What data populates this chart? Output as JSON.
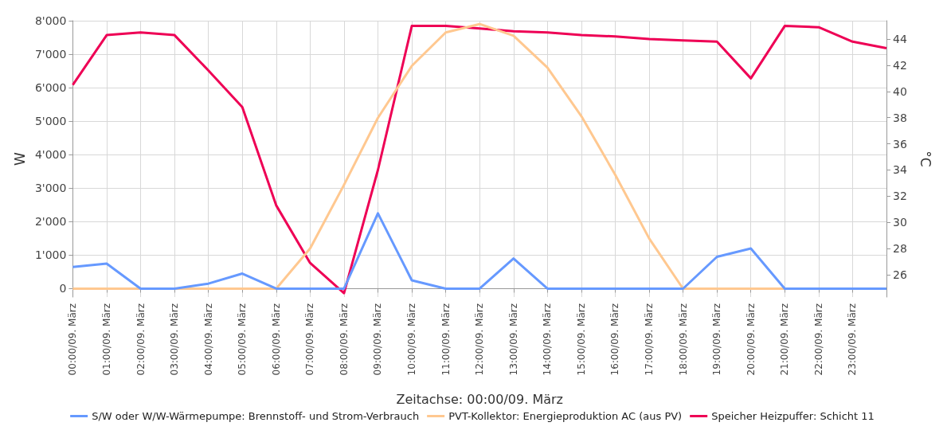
{
  "chart_data": {
    "type": "line",
    "xlabel": "Zeitachse: 00:00/09. März",
    "ylabel": "W",
    "y2label": "°C",
    "categories": [
      "00:00/09. März",
      "01:00/09. März",
      "02:00/09. März",
      "03:00/09. März",
      "04:00/09. März",
      "05:00/09. März",
      "06:00/09. März",
      "07:00/09. März",
      "08:00/09. März",
      "09:00/09. März",
      "10:00/09. März",
      "11:00/09. März",
      "12:00/09. März",
      "13:00/09. März",
      "14:00/09. März",
      "15:00/09. März",
      "16:00/09. März",
      "17:00/09. März",
      "18:00/09. März",
      "19:00/09. März",
      "20:00/09. März",
      "21:00/09. März",
      "22:00/09. März",
      "23:00/09. März",
      null
    ],
    "series": [
      {
        "name": "S/W oder W/W-Wärmepumpe: Brennstoff- und Strom-Verbrauch",
        "color": "#6699ff",
        "values": [
          650,
          750,
          0,
          0,
          150,
          450,
          0,
          0,
          0,
          2250,
          250,
          0,
          0,
          900,
          0,
          0,
          0,
          0,
          0,
          950,
          1200,
          0,
          0,
          0,
          0
        ]
      },
      {
        "name": "PVT-Kollektor: Energieproduktion AC (aus PV)",
        "color": "#ffc890",
        "values": [
          0,
          0,
          0,
          0,
          0,
          0,
          0,
          1200,
          3100,
          5100,
          6650,
          7650,
          7900,
          7550,
          6600,
          5150,
          3400,
          1500,
          0,
          0,
          0,
          0,
          0,
          null,
          null
        ]
      },
      {
        "name": "Speicher Heizpuffer: Schicht 11",
        "color": "#ee0055",
        "axis": "y2",
        "values": [
          40.5,
          44.3,
          44.5,
          44.3,
          41.6,
          38.8,
          31.3,
          26.9,
          24.6,
          34.0,
          45.0,
          45.0,
          44.8,
          44.6,
          44.5,
          44.3,
          44.2,
          44.0,
          43.9,
          43.8,
          41.0,
          45.0,
          44.9,
          43.8,
          43.3
        ]
      }
    ],
    "ylim": [
      -250,
      8000
    ],
    "yticks": [
      0,
      {
        "value": 1000,
        "label": "1'000"
      },
      {
        "value": 2000,
        "label": "2'000"
      },
      {
        "value": 3000,
        "label": "3'000"
      },
      {
        "value": 4000,
        "label": "4'000"
      },
      {
        "value": 5000,
        "label": "5'000"
      },
      {
        "value": 6000,
        "label": "6'000"
      },
      {
        "value": 7000,
        "label": "7'000"
      },
      {
        "value": 8000,
        "label": "8'000"
      }
    ],
    "y2lim": [
      24.3,
      45.4
    ],
    "y2ticks": [
      26,
      28,
      30,
      32,
      34,
      36,
      38,
      40,
      42,
      44
    ],
    "grid": true,
    "legend": "bottom",
    "marker": "none",
    "line_style": "solid"
  }
}
